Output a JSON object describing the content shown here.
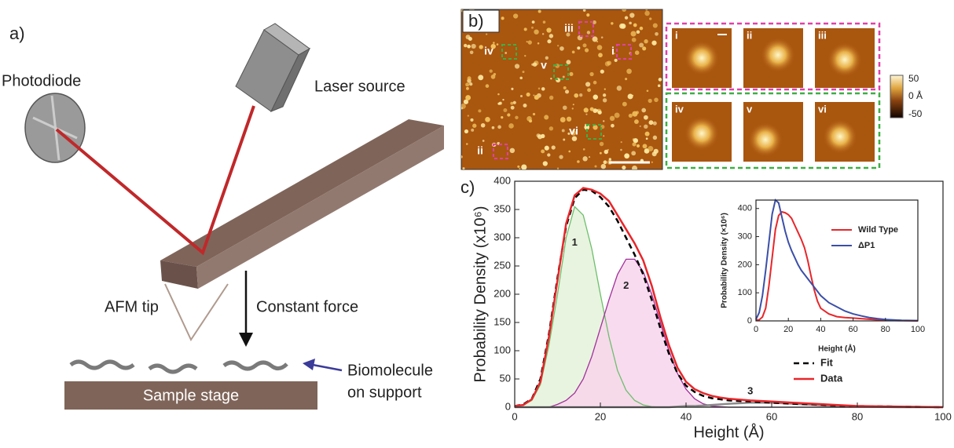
{
  "panel_a": {
    "label": "a)",
    "photodiode": "Photodiode",
    "laser": "Laser source",
    "tip": "AFM tip",
    "force": "Constant force",
    "biomolecule": [
      "Biomolecule",
      "on support"
    ],
    "stage": "Sample stage"
  },
  "panel_b": {
    "label": "b)",
    "regions": [
      "i",
      "ii",
      "iii",
      "iv",
      "v",
      "vi"
    ],
    "colorbar": [
      "50",
      "0  Å",
      "-50"
    ]
  },
  "panel_c": {
    "label": "c)"
  },
  "chart_data": [
    {
      "type": "line",
      "x_label": "Height (Å)",
      "y_label": "Probability Density (x10⁶)",
      "x": [
        0,
        2,
        4,
        6,
        8,
        10,
        12,
        14,
        16,
        18,
        20,
        22,
        24,
        26,
        28,
        30,
        32,
        34,
        36,
        38,
        40,
        42,
        44,
        46,
        48,
        50,
        55,
        60,
        65,
        70,
        75,
        80,
        90,
        100
      ],
      "xlim": [
        0,
        100
      ],
      "xticks": [
        0,
        20,
        40,
        60,
        80,
        100
      ],
      "ylim": [
        0,
        400
      ],
      "yticks": [
        0,
        50,
        100,
        150,
        200,
        250,
        300,
        350,
        400
      ],
      "legend": "lower right",
      "series": [
        {
          "label": "1",
          "color": "#6cbf6c",
          "fill": "#e4f2d9",
          "values": [
            1,
            4,
            12,
            40,
            110,
            200,
            300,
            355,
            340,
            280,
            200,
            125,
            65,
            30,
            12,
            4,
            1,
            0,
            0,
            0,
            0,
            0,
            0,
            0,
            0,
            0,
            0,
            0,
            0,
            0,
            0,
            0,
            0,
            0
          ]
        },
        {
          "label": "2",
          "color": "#a0309a",
          "fill": "#f8d5ec",
          "values": [
            0,
            0,
            0,
            0,
            0,
            5,
            12,
            25,
            50,
            90,
            140,
            190,
            235,
            262,
            262,
            240,
            200,
            150,
            100,
            60,
            32,
            15,
            6,
            2,
            1,
            0,
            0,
            0,
            0,
            0,
            0,
            0,
            0,
            0
          ]
        },
        {
          "label": "3",
          "color": "#8a8a8a",
          "values": [
            0,
            0,
            0,
            0,
            0,
            0,
            0,
            0,
            0,
            0,
            0,
            0,
            0,
            0,
            0,
            0,
            0,
            0,
            0,
            1,
            2,
            2,
            3,
            4,
            5,
            6,
            8,
            8,
            6,
            4,
            2,
            1,
            0,
            0
          ]
        },
        {
          "name": "Fit",
          "color": "#000000",
          "dash": true,
          "values": [
            2,
            5,
            15,
            50,
            130,
            230,
            320,
            370,
            385,
            383,
            372,
            355,
            330,
            300,
            270,
            235,
            190,
            140,
            95,
            60,
            38,
            27,
            20,
            16,
            14,
            12,
            10,
            8,
            6,
            5,
            3,
            2,
            1,
            0
          ]
        },
        {
          "name": "Data",
          "color": "#e8262a",
          "values": [
            2,
            4,
            14,
            45,
            125,
            225,
            325,
            375,
            388,
            385,
            378,
            365,
            340,
            315,
            290,
            260,
            215,
            160,
            110,
            70,
            45,
            32,
            25,
            20,
            17,
            15,
            12,
            10,
            8,
            6,
            4,
            2,
            1,
            0
          ]
        }
      ]
    },
    {
      "type": "line",
      "x_label": "Height (Å)",
      "y_label": "Probability Density (×10⁶)",
      "x": [
        0,
        2,
        4,
        6,
        8,
        10,
        12,
        14,
        16,
        18,
        20,
        22,
        24,
        26,
        28,
        30,
        32,
        34,
        36,
        38,
        40,
        45,
        50,
        55,
        60,
        65,
        70,
        75,
        80,
        90,
        100
      ],
      "xlim": [
        0,
        100
      ],
      "xticks": [
        0,
        20,
        40,
        60,
        80,
        100
      ],
      "ylim": [
        0,
        430
      ],
      "yticks": [
        0,
        100,
        200,
        300,
        400
      ],
      "legend": "upper right",
      "series": [
        {
          "name": "Wild Type",
          "color": "#e8262a",
          "values": [
            2,
            4,
            14,
            45,
            125,
            225,
            325,
            375,
            388,
            385,
            378,
            365,
            340,
            315,
            290,
            260,
            215,
            160,
            110,
            70,
            45,
            25,
            15,
            12,
            10,
            8,
            6,
            4,
            2,
            1,
            0
          ]
        },
        {
          "name": "ΔP1",
          "color": "#3b4fa8",
          "values": [
            5,
            30,
            90,
            180,
            280,
            380,
            430,
            420,
            370,
            320,
            280,
            250,
            225,
            200,
            180,
            165,
            150,
            135,
            120,
            105,
            90,
            65,
            50,
            35,
            25,
            18,
            12,
            8,
            5,
            2,
            1
          ]
        }
      ]
    }
  ]
}
